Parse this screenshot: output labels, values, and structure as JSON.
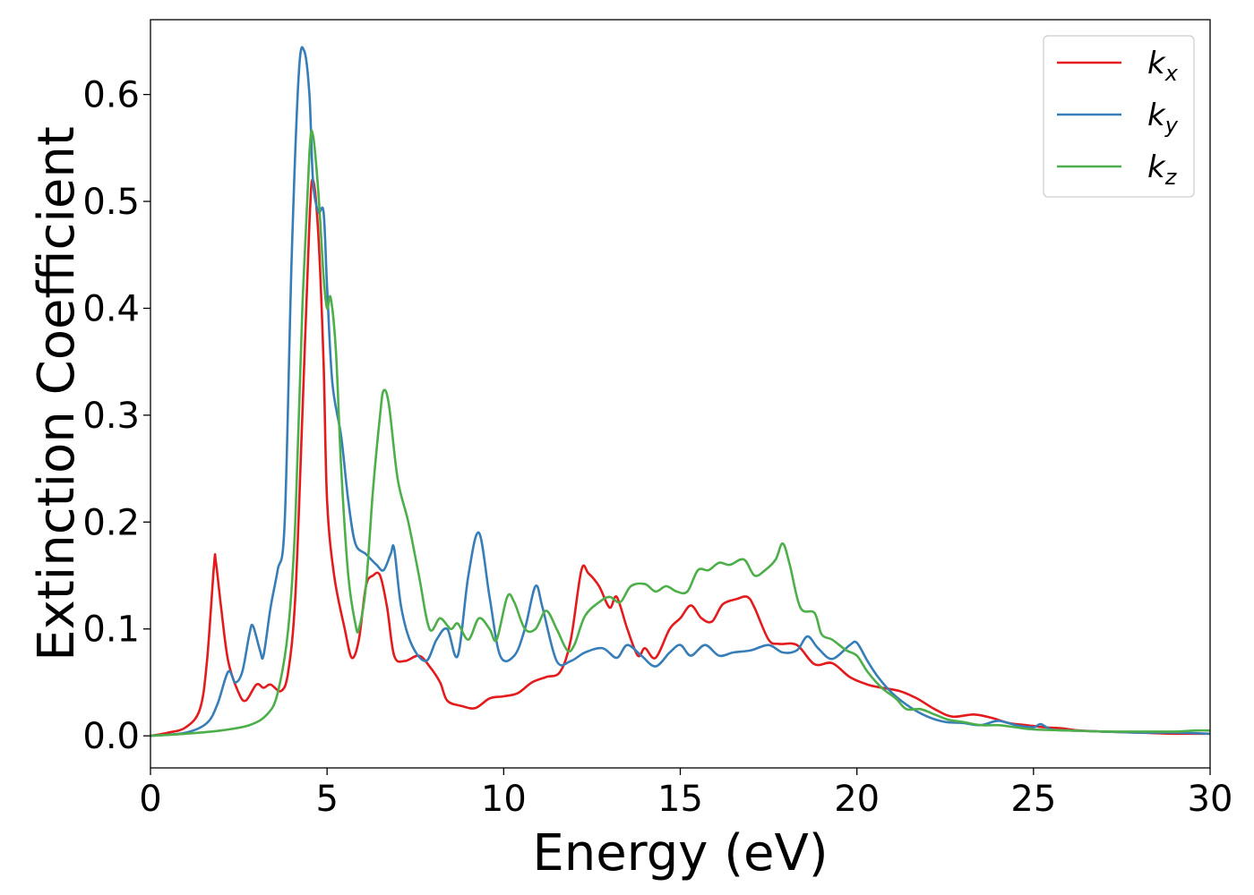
{
  "chart_data": {
    "type": "line",
    "title": "",
    "xlabel": "Energy (eV)",
    "ylabel": "Extinction Coefficient",
    "xlim": [
      0,
      30
    ],
    "ylim": [
      -0.03,
      0.67
    ],
    "xticks": [
      0,
      5,
      10,
      15,
      20,
      25,
      30
    ],
    "xtick_labels": [
      "0",
      "5",
      "10",
      "15",
      "20",
      "25",
      "30"
    ],
    "yticks": [
      0.0,
      0.1,
      0.2,
      0.3,
      0.4,
      0.5,
      0.6
    ],
    "ytick_labels": [
      "0.0",
      "0.1",
      "0.2",
      "0.3",
      "0.4",
      "0.5",
      "0.6"
    ],
    "grid": false,
    "legend_position": "top-right",
    "series": [
      {
        "name": "k",
        "sub": "x",
        "color": "#e41a1c",
        "points": [
          [
            0,
            0
          ],
          [
            0.5,
            0.003
          ],
          [
            1,
            0.008
          ],
          [
            1.4,
            0.025
          ],
          [
            1.6,
            0.07
          ],
          [
            1.8,
            0.16
          ],
          [
            1.85,
            0.163
          ],
          [
            2.0,
            0.12
          ],
          [
            2.2,
            0.07
          ],
          [
            2.5,
            0.04
          ],
          [
            2.7,
            0.033
          ],
          [
            3.0,
            0.048
          ],
          [
            3.2,
            0.045
          ],
          [
            3.4,
            0.048
          ],
          [
            3.7,
            0.042
          ],
          [
            3.9,
            0.06
          ],
          [
            4.1,
            0.13
          ],
          [
            4.3,
            0.3
          ],
          [
            4.5,
            0.48
          ],
          [
            4.6,
            0.52
          ],
          [
            4.75,
            0.47
          ],
          [
            4.9,
            0.35
          ],
          [
            5.0,
            0.22
          ],
          [
            5.2,
            0.15
          ],
          [
            5.5,
            0.1
          ],
          [
            5.7,
            0.073
          ],
          [
            5.9,
            0.09
          ],
          [
            6.1,
            0.14
          ],
          [
            6.3,
            0.15
          ],
          [
            6.5,
            0.15
          ],
          [
            6.7,
            0.12
          ],
          [
            6.9,
            0.075
          ],
          [
            7.2,
            0.07
          ],
          [
            7.6,
            0.075
          ],
          [
            7.9,
            0.065
          ],
          [
            8.2,
            0.05
          ],
          [
            8.4,
            0.033
          ],
          [
            8.8,
            0.028
          ],
          [
            9.2,
            0.026
          ],
          [
            9.6,
            0.035
          ],
          [
            10,
            0.037
          ],
          [
            10.4,
            0.04
          ],
          [
            10.8,
            0.05
          ],
          [
            11.2,
            0.055
          ],
          [
            11.6,
            0.06
          ],
          [
            11.9,
            0.09
          ],
          [
            12.2,
            0.155
          ],
          [
            12.4,
            0.152
          ],
          [
            12.7,
            0.14
          ],
          [
            13.0,
            0.12
          ],
          [
            13.2,
            0.13
          ],
          [
            13.5,
            0.1
          ],
          [
            13.8,
            0.075
          ],
          [
            14.0,
            0.082
          ],
          [
            14.3,
            0.073
          ],
          [
            14.7,
            0.1
          ],
          [
            15.0,
            0.11
          ],
          [
            15.3,
            0.122
          ],
          [
            15.6,
            0.11
          ],
          [
            15.9,
            0.107
          ],
          [
            16.2,
            0.123
          ],
          [
            16.6,
            0.128
          ],
          [
            16.9,
            0.13
          ],
          [
            17.1,
            0.12
          ],
          [
            17.5,
            0.09
          ],
          [
            17.8,
            0.086
          ],
          [
            18.3,
            0.085
          ],
          [
            18.8,
            0.067
          ],
          [
            19.3,
            0.068
          ],
          [
            19.8,
            0.055
          ],
          [
            20.3,
            0.048
          ],
          [
            20.7,
            0.045
          ],
          [
            21.2,
            0.042
          ],
          [
            21.7,
            0.035
          ],
          [
            22.2,
            0.025
          ],
          [
            22.7,
            0.018
          ],
          [
            23.3,
            0.02
          ],
          [
            23.8,
            0.017
          ],
          [
            24.3,
            0.012
          ],
          [
            24.8,
            0.01
          ],
          [
            25.3,
            0.008
          ],
          [
            25.8,
            0.007
          ],
          [
            26.3,
            0.005
          ],
          [
            27,
            0.004
          ],
          [
            28,
            0.003
          ],
          [
            29,
            0.002
          ],
          [
            30,
            0.002
          ]
        ]
      },
      {
        "name": "k",
        "sub": "y",
        "color": "#377eb8",
        "points": [
          [
            0,
            0
          ],
          [
            1,
            0.003
          ],
          [
            1.6,
            0.012
          ],
          [
            1.9,
            0.03
          ],
          [
            2.2,
            0.06
          ],
          [
            2.4,
            0.05
          ],
          [
            2.6,
            0.06
          ],
          [
            2.8,
            0.095
          ],
          [
            2.9,
            0.103
          ],
          [
            3.1,
            0.08
          ],
          [
            3.2,
            0.075
          ],
          [
            3.4,
            0.12
          ],
          [
            3.6,
            0.155
          ],
          [
            3.8,
            0.2
          ],
          [
            4.0,
            0.45
          ],
          [
            4.2,
            0.62
          ],
          [
            4.35,
            0.641
          ],
          [
            4.5,
            0.6
          ],
          [
            4.6,
            0.52
          ],
          [
            4.75,
            0.49
          ],
          [
            4.9,
            0.49
          ],
          [
            5.0,
            0.42
          ],
          [
            5.15,
            0.33
          ],
          [
            5.4,
            0.28
          ],
          [
            5.6,
            0.22
          ],
          [
            5.8,
            0.18
          ],
          [
            6.1,
            0.17
          ],
          [
            6.4,
            0.16
          ],
          [
            6.6,
            0.155
          ],
          [
            6.8,
            0.17
          ],
          [
            6.9,
            0.175
          ],
          [
            7.1,
            0.12
          ],
          [
            7.4,
            0.085
          ],
          [
            7.8,
            0.07
          ],
          [
            8.1,
            0.09
          ],
          [
            8.4,
            0.1
          ],
          [
            8.7,
            0.075
          ],
          [
            9.0,
            0.15
          ],
          [
            9.3,
            0.19
          ],
          [
            9.6,
            0.13
          ],
          [
            9.9,
            0.075
          ],
          [
            10.3,
            0.075
          ],
          [
            10.6,
            0.1
          ],
          [
            10.9,
            0.14
          ],
          [
            11.1,
            0.12
          ],
          [
            11.5,
            0.07
          ],
          [
            11.9,
            0.07
          ],
          [
            12.3,
            0.078
          ],
          [
            12.8,
            0.082
          ],
          [
            13.2,
            0.073
          ],
          [
            13.5,
            0.085
          ],
          [
            13.9,
            0.075
          ],
          [
            14.3,
            0.065
          ],
          [
            14.7,
            0.078
          ],
          [
            15.0,
            0.085
          ],
          [
            15.3,
            0.075
          ],
          [
            15.7,
            0.085
          ],
          [
            16.1,
            0.075
          ],
          [
            16.5,
            0.078
          ],
          [
            17.0,
            0.08
          ],
          [
            17.5,
            0.085
          ],
          [
            17.9,
            0.078
          ],
          [
            18.3,
            0.08
          ],
          [
            18.6,
            0.093
          ],
          [
            18.9,
            0.082
          ],
          [
            19.3,
            0.072
          ],
          [
            19.8,
            0.085
          ],
          [
            20.0,
            0.087
          ],
          [
            20.3,
            0.07
          ],
          [
            20.6,
            0.055
          ],
          [
            21.0,
            0.04
          ],
          [
            21.5,
            0.027
          ],
          [
            22.0,
            0.018
          ],
          [
            22.5,
            0.013
          ],
          [
            23.0,
            0.012
          ],
          [
            23.5,
            0.01
          ],
          [
            24.0,
            0.014
          ],
          [
            24.5,
            0.01
          ],
          [
            25.0,
            0.008
          ],
          [
            25.2,
            0.011
          ],
          [
            25.5,
            0.006
          ],
          [
            26,
            0.005
          ],
          [
            27,
            0.004
          ],
          [
            28,
            0.003
          ],
          [
            29,
            0.003
          ],
          [
            30,
            0.002
          ]
        ]
      },
      {
        "name": "k",
        "sub": "z",
        "color": "#4daf4a",
        "points": [
          [
            0,
            0
          ],
          [
            1,
            0.002
          ],
          [
            2,
            0.005
          ],
          [
            2.8,
            0.01
          ],
          [
            3.3,
            0.02
          ],
          [
            3.6,
            0.04
          ],
          [
            3.9,
            0.1
          ],
          [
            4.1,
            0.2
          ],
          [
            4.3,
            0.4
          ],
          [
            4.5,
            0.545
          ],
          [
            4.6,
            0.562
          ],
          [
            4.75,
            0.51
          ],
          [
            4.9,
            0.43
          ],
          [
            5.0,
            0.4
          ],
          [
            5.1,
            0.41
          ],
          [
            5.25,
            0.36
          ],
          [
            5.4,
            0.25
          ],
          [
            5.6,
            0.15
          ],
          [
            5.8,
            0.105
          ],
          [
            5.9,
            0.1
          ],
          [
            6.1,
            0.14
          ],
          [
            6.3,
            0.23
          ],
          [
            6.5,
            0.3
          ],
          [
            6.6,
            0.323
          ],
          [
            6.75,
            0.31
          ],
          [
            7.0,
            0.24
          ],
          [
            7.3,
            0.2
          ],
          [
            7.6,
            0.15
          ],
          [
            7.9,
            0.1
          ],
          [
            8.2,
            0.11
          ],
          [
            8.5,
            0.1
          ],
          [
            8.7,
            0.105
          ],
          [
            9.0,
            0.09
          ],
          [
            9.3,
            0.11
          ],
          [
            9.6,
            0.1
          ],
          [
            9.8,
            0.09
          ],
          [
            10.1,
            0.13
          ],
          [
            10.3,
            0.125
          ],
          [
            10.6,
            0.1
          ],
          [
            10.9,
            0.1
          ],
          [
            11.2,
            0.117
          ],
          [
            11.5,
            0.1
          ],
          [
            11.8,
            0.08
          ],
          [
            12.0,
            0.085
          ],
          [
            12.3,
            0.112
          ],
          [
            12.7,
            0.125
          ],
          [
            13.0,
            0.13
          ],
          [
            13.3,
            0.125
          ],
          [
            13.6,
            0.14
          ],
          [
            14.0,
            0.142
          ],
          [
            14.3,
            0.135
          ],
          [
            14.6,
            0.14
          ],
          [
            14.9,
            0.135
          ],
          [
            15.2,
            0.135
          ],
          [
            15.5,
            0.155
          ],
          [
            15.8,
            0.155
          ],
          [
            16.1,
            0.162
          ],
          [
            16.4,
            0.16
          ],
          [
            16.8,
            0.165
          ],
          [
            17.1,
            0.15
          ],
          [
            17.4,
            0.155
          ],
          [
            17.7,
            0.165
          ],
          [
            17.9,
            0.18
          ],
          [
            18.1,
            0.16
          ],
          [
            18.4,
            0.12
          ],
          [
            18.8,
            0.115
          ],
          [
            19.0,
            0.095
          ],
          [
            19.3,
            0.09
          ],
          [
            19.7,
            0.08
          ],
          [
            20.0,
            0.075
          ],
          [
            20.3,
            0.06
          ],
          [
            20.7,
            0.045
          ],
          [
            21.1,
            0.035
          ],
          [
            21.4,
            0.025
          ],
          [
            21.8,
            0.025
          ],
          [
            22.2,
            0.02
          ],
          [
            22.6,
            0.015
          ],
          [
            23.0,
            0.013
          ],
          [
            23.5,
            0.01
          ],
          [
            24.0,
            0.01
          ],
          [
            24.5,
            0.008
          ],
          [
            25.0,
            0.006
          ],
          [
            26,
            0.005
          ],
          [
            27,
            0.004
          ],
          [
            28,
            0.004
          ],
          [
            29,
            0.004
          ],
          [
            29.6,
            0.005
          ],
          [
            30,
            0.005
          ]
        ]
      }
    ]
  }
}
